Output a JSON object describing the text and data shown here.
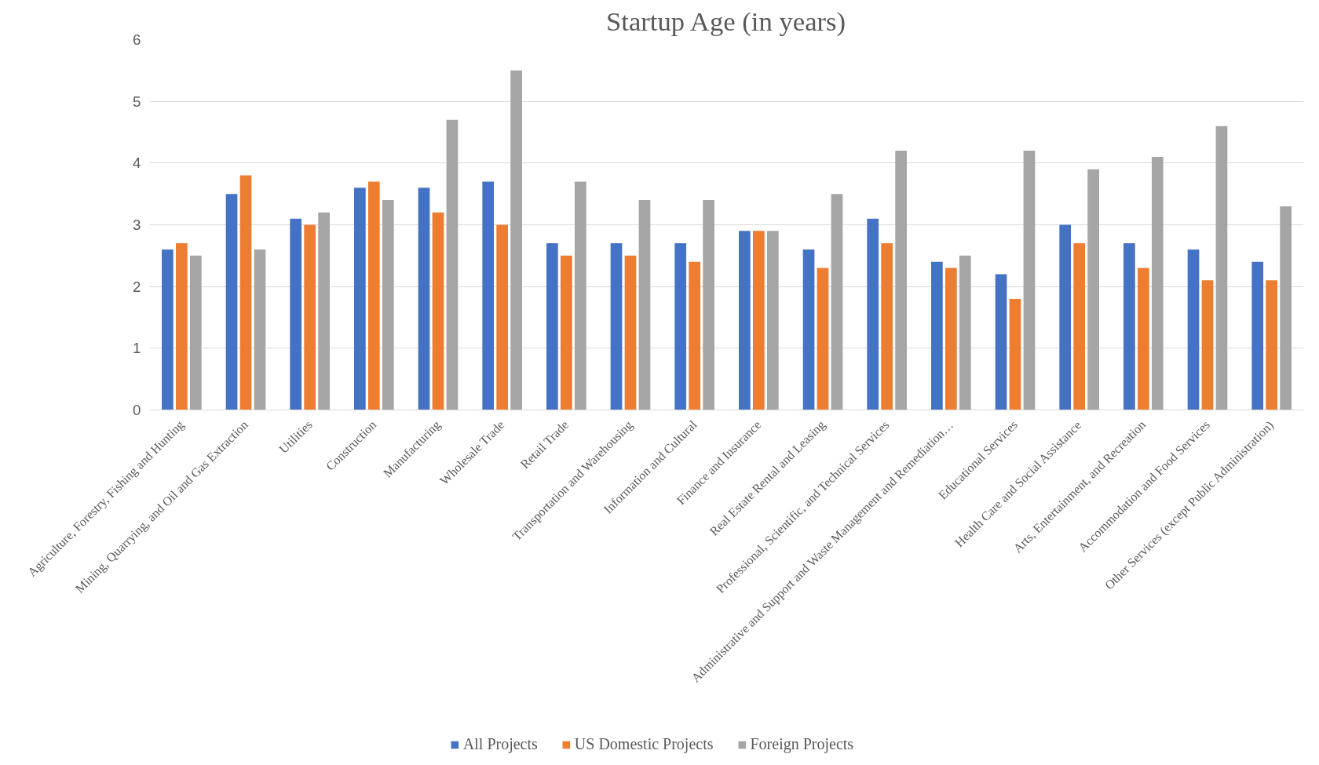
{
  "chart_data": {
    "type": "bar",
    "title": "Startup Age (in years)",
    "categories": [
      "Agriculture, Forestry, Fishing and Hunting",
      "Mining, Quarrying, and Oil and Gas Extraction",
      "Utilities",
      "Construction",
      "Manufacturing",
      "Wholesale Trade",
      "Retail Trade",
      "Transportation and Warehousing",
      "Information and Cultural",
      "Finance and Insurance",
      "Real Estate Rental and Leasing",
      "Professional, Scientific, and Technical Services",
      "Administrative and Support and Waste Management and Remediation…",
      "Educational Services",
      "Health Care and Social Assistance",
      "Arts, Entertainment, and Recreation",
      "Accommodation and Food Services",
      "Other Services (except Public Administration)"
    ],
    "series": [
      {
        "name": "All Projects",
        "color": "#4472c4",
        "values": [
          2.6,
          3.5,
          3.1,
          3.6,
          3.6,
          3.7,
          2.7,
          2.7,
          2.7,
          2.9,
          2.6,
          3.1,
          2.4,
          2.2,
          3.0,
          2.7,
          2.6,
          2.4
        ]
      },
      {
        "name": "US Domestic Projects",
        "color": "#ed7d31",
        "values": [
          2.7,
          3.8,
          3.0,
          3.7,
          3.2,
          3.0,
          2.5,
          2.5,
          2.4,
          2.9,
          2.3,
          2.7,
          2.3,
          1.8,
          2.7,
          2.3,
          2.1,
          2.1
        ]
      },
      {
        "name": "Foreign Projects",
        "color": "#a5a5a5",
        "values": [
          2.5,
          2.6,
          3.2,
          3.4,
          4.7,
          5.5,
          3.7,
          3.4,
          3.4,
          2.9,
          3.5,
          4.2,
          2.5,
          4.2,
          3.9,
          4.1,
          4.6,
          3.3
        ]
      }
    ],
    "ylim": [
      0,
      6
    ],
    "yticks": [
      0,
      1,
      2,
      3,
      4,
      5,
      6
    ],
    "grid": "y",
    "legend": "bottom"
  }
}
